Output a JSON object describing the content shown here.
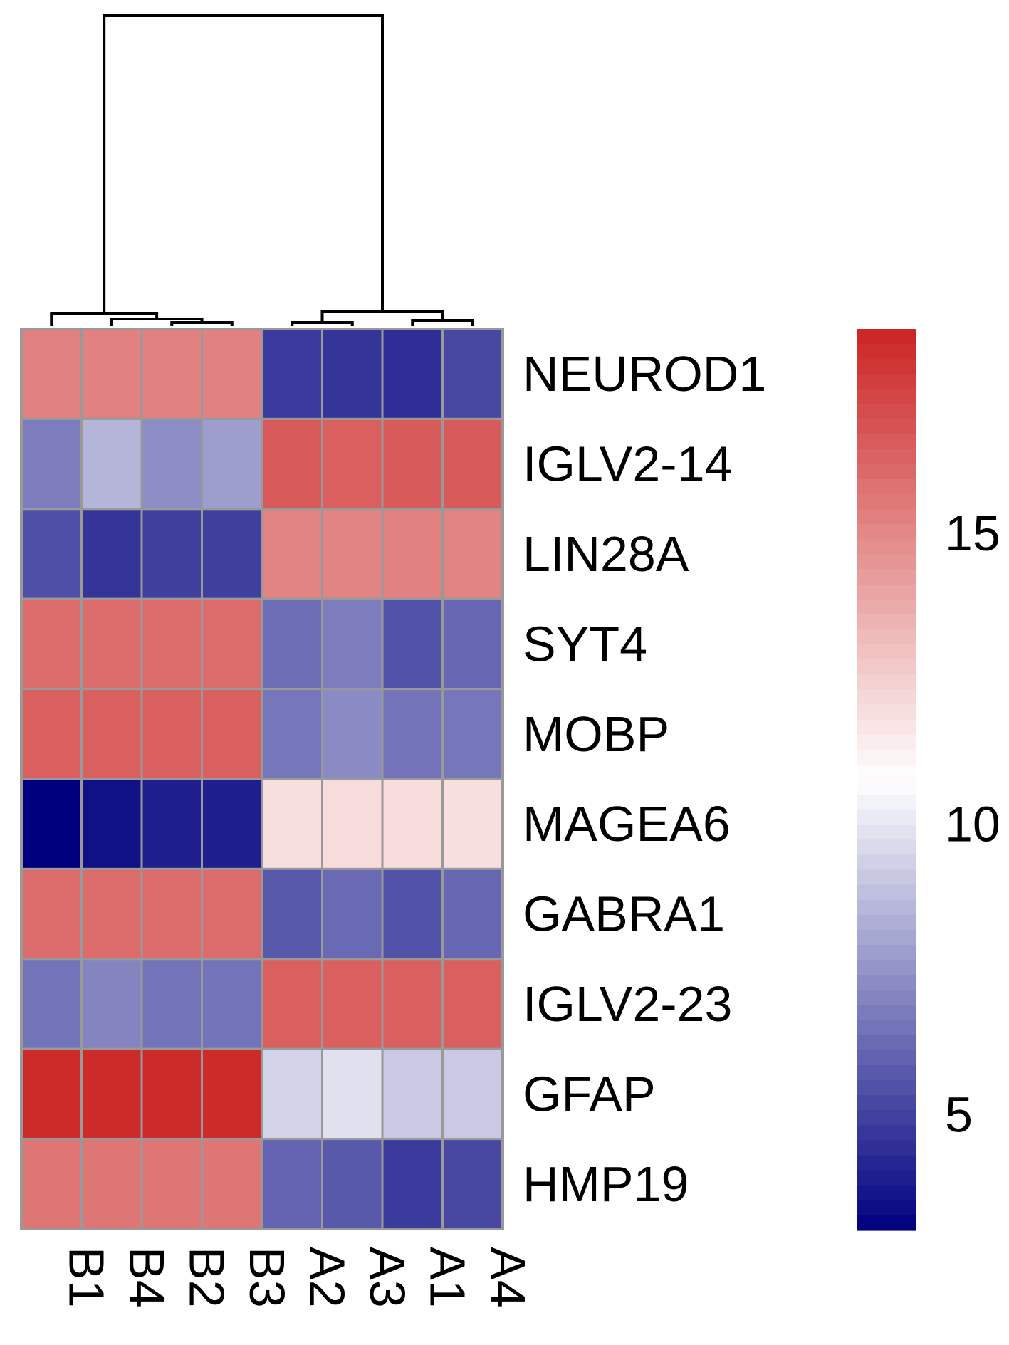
{
  "chart_data": {
    "type": "heatmap",
    "title": "",
    "columns": [
      "B1",
      "B4",
      "B2",
      "B3",
      "A2",
      "A3",
      "A1",
      "A4"
    ],
    "rows": [
      "NEUROD1",
      "IGLV2-14",
      "LIN28A",
      "SYT4",
      "MOBP",
      "MAGEA6",
      "GABRA1",
      "IGLV2-23",
      "GFAP",
      "HMP19"
    ],
    "values": [
      [
        15.2,
        15.2,
        15.2,
        15.2,
        4.8,
        4.6,
        4.4,
        5.2
      ],
      [
        6.8,
        8.5,
        7.3,
        7.8,
        16.6,
        16.4,
        16.6,
        16.6
      ],
      [
        5.4,
        4.6,
        4.9,
        4.9,
        15.1,
        15.1,
        15.2,
        15.1
      ],
      [
        16.0,
        16.0,
        16.0,
        16.0,
        6.3,
        6.8,
        5.5,
        6.1
      ],
      [
        16.4,
        16.4,
        16.4,
        16.4,
        6.6,
        7.2,
        6.5,
        6.6
      ],
      [
        3.0,
        3.5,
        3.9,
        3.9,
        11.9,
        12.0,
        12.0,
        11.9
      ],
      [
        16.0,
        16.0,
        16.0,
        16.0,
        5.7,
        6.2,
        5.5,
        6.1
      ],
      [
        6.5,
        7.0,
        6.5,
        6.5,
        16.4,
        16.4,
        16.4,
        16.4
      ],
      [
        18.3,
        18.3,
        18.3,
        18.3,
        9.4,
        9.8,
        9.1,
        9.1
      ],
      [
        15.6,
        15.6,
        15.6,
        15.6,
        6.0,
        5.7,
        4.8,
        5.2
      ]
    ],
    "color_scale": {
      "min": 3.0,
      "max": 18.5,
      "ticks": [
        5,
        10,
        15
      ],
      "low_color": "#00007f",
      "mid_color": "#ffffff",
      "mid_value": 10.75,
      "high_color": "#cc2424"
    },
    "cell_border_color": "#999999",
    "dendrogram_color": "#000000",
    "legend_position": "right"
  }
}
